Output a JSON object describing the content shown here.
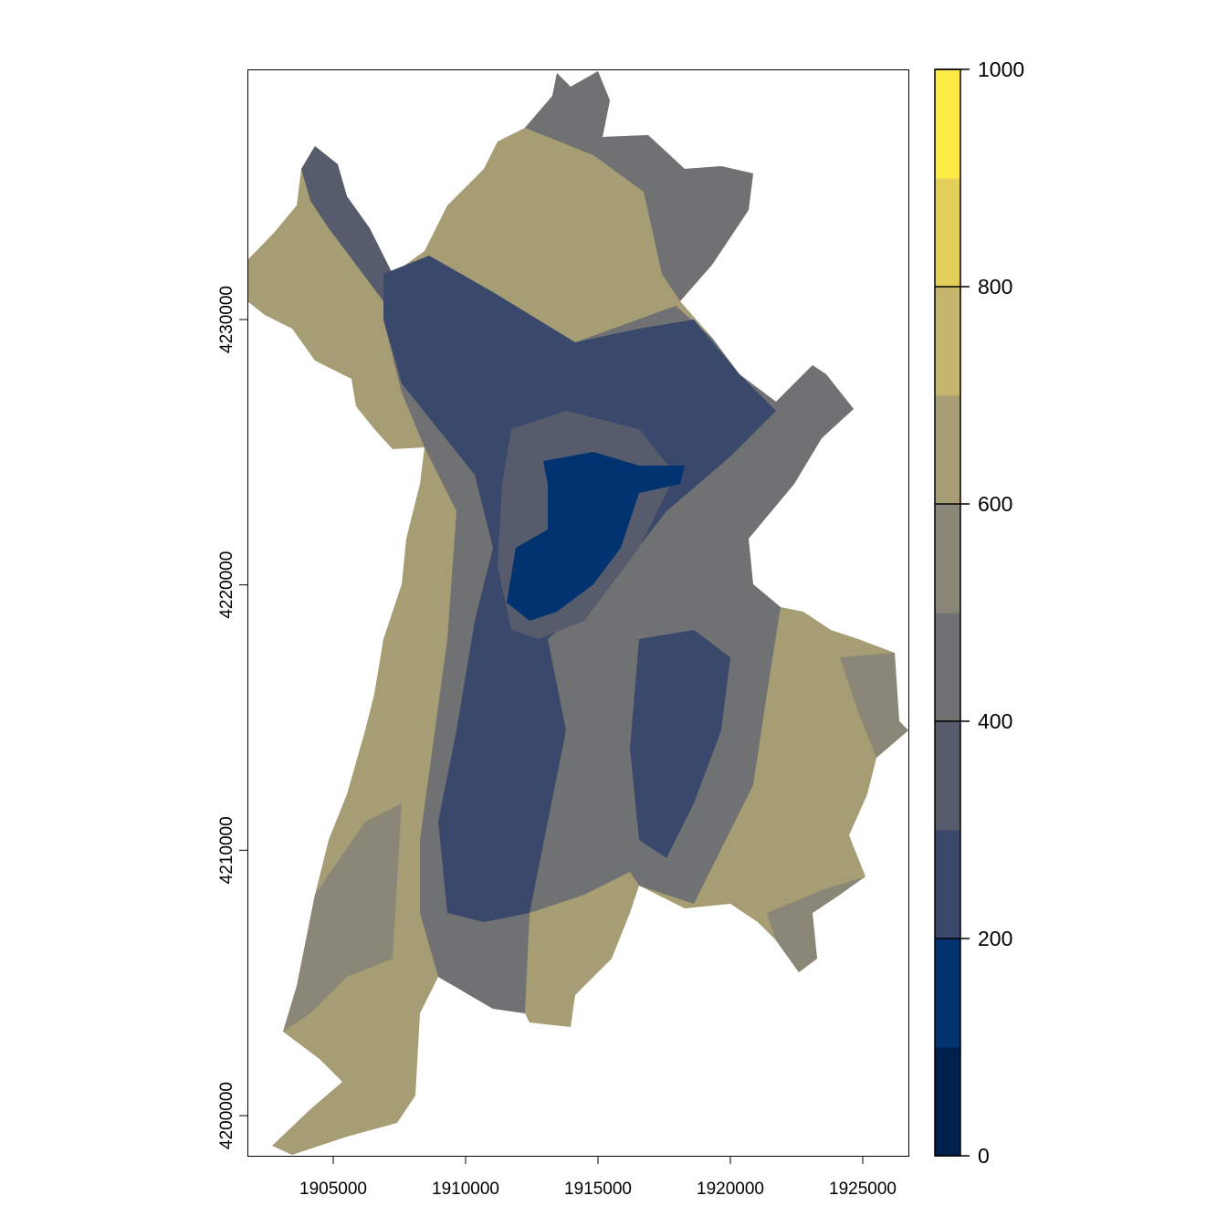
{
  "map": {
    "type": "raster",
    "x_ticks": [
      "1905000",
      "1910000",
      "1915000",
      "1920000",
      "1925000"
    ],
    "y_ticks": [
      "4200000",
      "4210000",
      "4220000",
      "4230000"
    ],
    "x_tick_values": [
      1905000,
      1910000,
      1915000,
      1920000,
      1925000
    ],
    "y_tick_values": [
      4200000,
      4210000,
      4220000,
      4230000
    ]
  },
  "legend": {
    "breaks": [
      0,
      100,
      200,
      300,
      400,
      500,
      600,
      700,
      800,
      900,
      1000
    ],
    "labels": [
      "0",
      "200",
      "400",
      "600",
      "800",
      "1000"
    ],
    "label_values": [
      0,
      200,
      400,
      600,
      800,
      1000
    ],
    "colors": [
      "#00204D",
      "#00336F",
      "#39486B",
      "#575C6D",
      "#707173",
      "#8A8779",
      "#A69D75",
      "#C4B56C",
      "#E4CF5B",
      "#FFEA46"
    ],
    "range": [
      0,
      1000
    ]
  }
}
